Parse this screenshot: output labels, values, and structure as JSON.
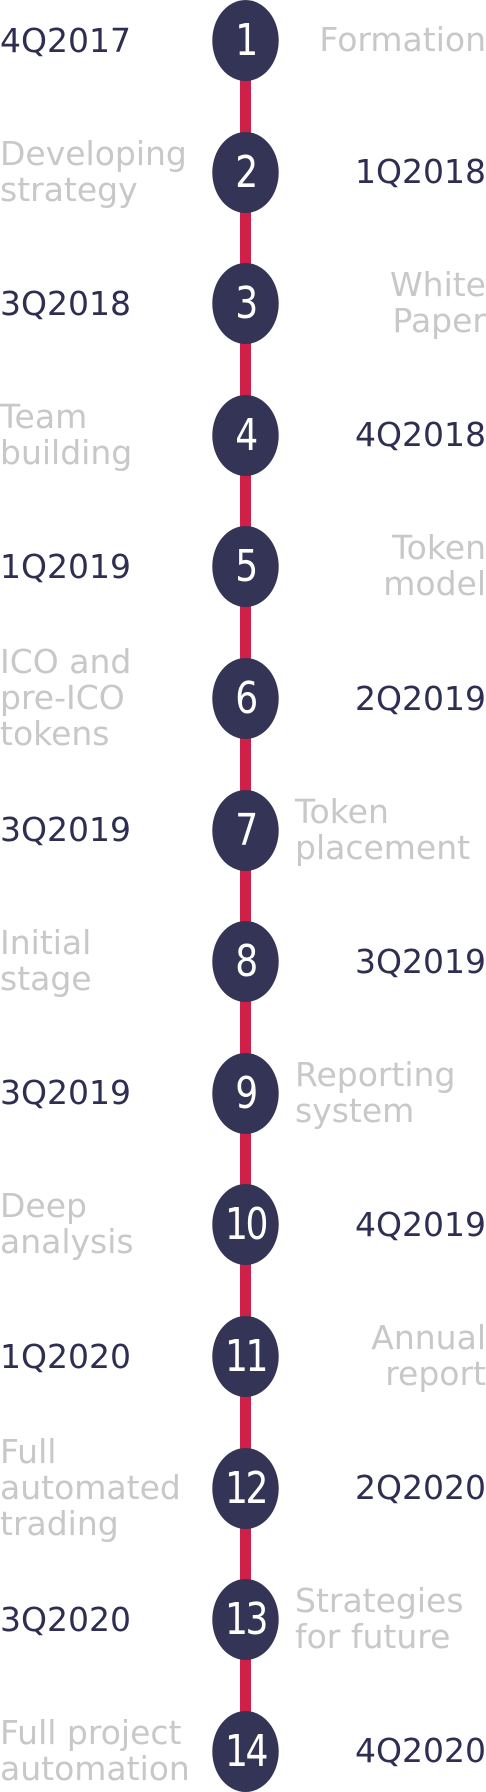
{
  "milestones": [
    {
      "number": "1",
      "date": "4Q2017",
      "title": [
        "Formation"
      ]
    },
    {
      "number": "2",
      "date": "1Q2018",
      "title": [
        "Developing",
        "strategy"
      ]
    },
    {
      "number": "3",
      "date": "3Q2018",
      "title": [
        "White",
        "Paper"
      ]
    },
    {
      "number": "4",
      "date": "4Q2018",
      "title": [
        "Team",
        "building"
      ]
    },
    {
      "number": "5",
      "date": "1Q2019",
      "title": [
        "Token",
        "model"
      ]
    },
    {
      "number": "6",
      "date": "2Q2019",
      "title": [
        "ICO and",
        "pre-ICO",
        "tokens"
      ]
    },
    {
      "number": "7",
      "date": "3Q2019",
      "title": [
        "Token",
        "placement"
      ]
    },
    {
      "number": "8",
      "date": "3Q2019",
      "title": [
        "Initial",
        "stage"
      ]
    },
    {
      "number": "9",
      "date": "3Q2019",
      "title": [
        "Reporting",
        "system"
      ]
    },
    {
      "number": "10",
      "date": "4Q2019",
      "title": [
        "Deep",
        "analysis"
      ]
    },
    {
      "number": "11",
      "date": "1Q2020",
      "title": [
        "Annual",
        "report"
      ]
    },
    {
      "number": "12",
      "date": "2Q2020",
      "title": [
        "Full",
        "automated",
        "trading"
      ]
    },
    {
      "number": "13",
      "date": "3Q2020",
      "title": [
        "Strategies",
        "for future"
      ]
    },
    {
      "number": "14",
      "date": "4Q2020",
      "title": [
        "Full project",
        "automation"
      ]
    }
  ],
  "colors": {
    "circle": "#343456",
    "spine": "#d0204a",
    "date_text": "#2e2e52",
    "title_text": "#c8c8c8"
  }
}
